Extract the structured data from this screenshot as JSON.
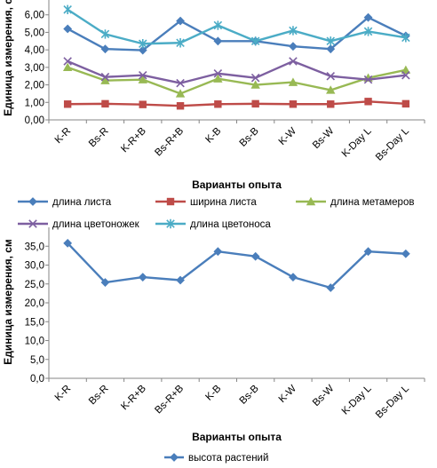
{
  "chart_data": [
    {
      "type": "line",
      "title": "",
      "xlabel": "Варианты опыта",
      "ylabel": "Единица измерения, см",
      "ylim": [
        0,
        7
      ],
      "ytick_labels": [
        "0,00",
        "1,00",
        "2,00",
        "3,00",
        "4,00",
        "5,00",
        "6,00"
      ],
      "grid": false,
      "legend_position": "bottom",
      "categories": [
        "K-R",
        "Bs-R",
        "K-R+B",
        "Bs-R+B",
        "K-B",
        "Bs-B",
        "K-W",
        "Bs-W",
        "K-Day L",
        "Bs-Day L"
      ],
      "series": [
        {
          "name": "длина листа",
          "color": "#4A7EBB",
          "marker": "diamond",
          "values": [
            5.2,
            4.05,
            3.98,
            5.65,
            4.5,
            4.5,
            4.2,
            4.05,
            5.85,
            4.8
          ]
        },
        {
          "name": "ширина листа",
          "color": "#BE4B48",
          "marker": "square",
          "values": [
            0.9,
            0.92,
            0.88,
            0.8,
            0.9,
            0.92,
            0.9,
            0.9,
            1.05,
            0.92
          ]
        },
        {
          "name": "длина метамеров",
          "color": "#98B954",
          "marker": "triangle",
          "values": [
            3.0,
            2.25,
            2.3,
            1.5,
            2.35,
            2.0,
            2.15,
            1.7,
            2.4,
            2.85
          ]
        },
        {
          "name": "длина цветоножек",
          "color": "#7D5FA0",
          "marker": "x",
          "values": [
            3.35,
            2.45,
            2.55,
            2.1,
            2.65,
            2.4,
            3.35,
            2.5,
            2.3,
            2.55
          ]
        },
        {
          "name": "длина цветоноса",
          "color": "#4BACC6",
          "marker": "star",
          "values": [
            6.3,
            4.9,
            4.35,
            4.4,
            5.4,
            4.5,
            5.1,
            4.5,
            5.05,
            4.7
          ]
        }
      ]
    },
    {
      "type": "line",
      "title": "",
      "xlabel": "Варианты опыта",
      "ylabel": "Единица измерения, см",
      "ylim": [
        0,
        40
      ],
      "ytick_labels": [
        "0,0",
        "5,0",
        "10,0",
        "15,0",
        "20,0",
        "25,0",
        "30,0",
        "35,0"
      ],
      "grid": false,
      "legend_position": "bottom",
      "categories": [
        "K-R",
        "Bs-R",
        "K-R+B",
        "Bs-R+B",
        "K-B",
        "Bs-B",
        "K-W",
        "Bs-W",
        "K-Day L",
        "Bs-Day L"
      ],
      "series": [
        {
          "name": "высота растений",
          "color": "#4A7EBB",
          "marker": "diamond",
          "values": [
            35.8,
            25.4,
            26.8,
            26.0,
            33.6,
            32.3,
            26.8,
            24.0,
            33.6,
            33.0
          ]
        }
      ]
    }
  ]
}
